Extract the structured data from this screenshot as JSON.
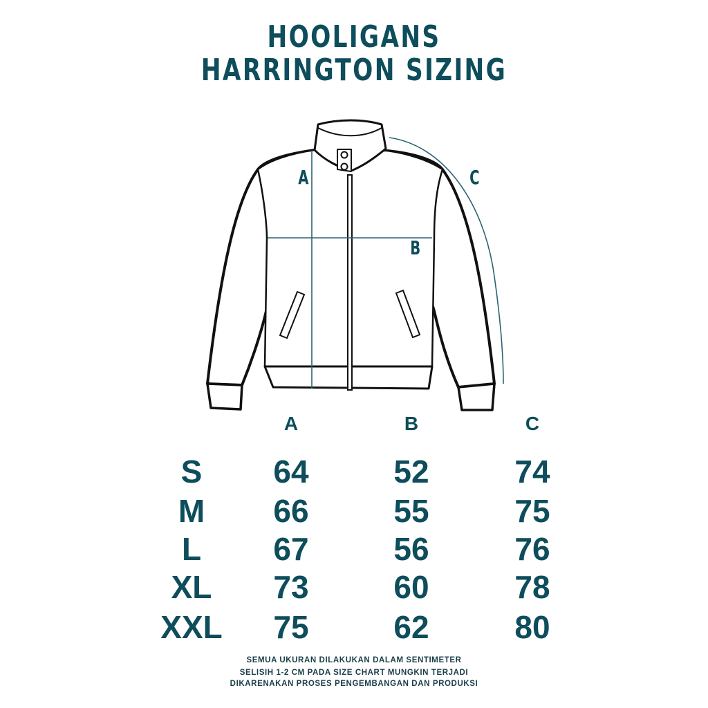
{
  "title": {
    "line1": "HOOLIGANS",
    "line2": "HARRINGTON SIZING"
  },
  "diagram_labels": {
    "a": "A",
    "b": "B",
    "c": "C"
  },
  "accent_color": "#0e4d5b",
  "table": {
    "headers": [
      "A",
      "B",
      "C"
    ],
    "rows": [
      {
        "size": "S",
        "values": [
          "64",
          "52",
          "74"
        ]
      },
      {
        "size": "M",
        "values": [
          "66",
          "55",
          "75"
        ]
      },
      {
        "size": "L",
        "values": [
          "67",
          "56",
          "76"
        ]
      },
      {
        "size": "XL",
        "values": [
          "73",
          "60",
          "78"
        ]
      },
      {
        "size": "XXL",
        "values": [
          "75",
          "62",
          "80"
        ]
      }
    ]
  },
  "notes": [
    "SEMUA UKURAN DILAKUKAN DALAM SENTIMETER",
    "SELISIH 1-2 CM PADA SIZE CHART MUNGKIN TERJADI",
    "DIKARENAKAN PROSES PENGEMBANGAN DAN PRODUKSI"
  ]
}
